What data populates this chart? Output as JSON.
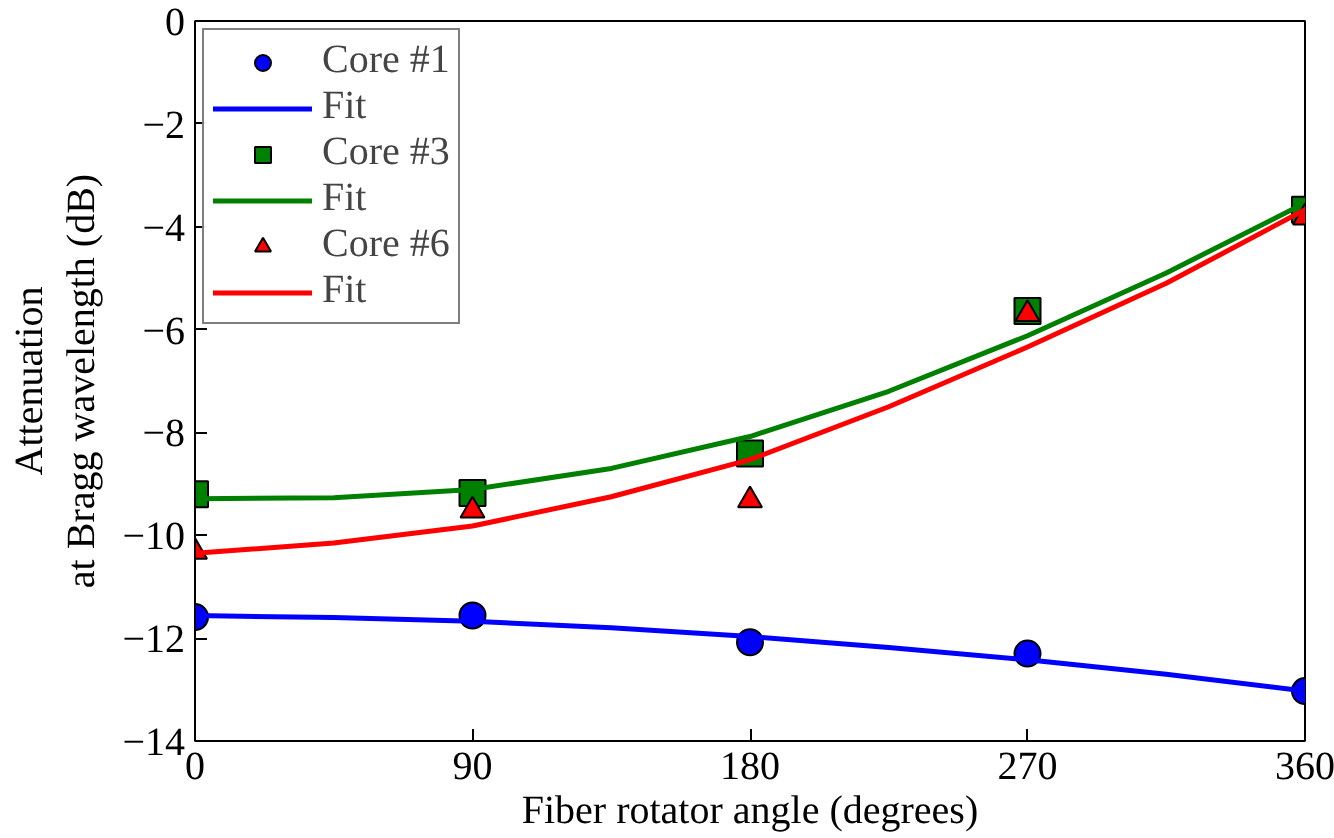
{
  "chart_data": {
    "type": "scatter",
    "xlabel": "Fiber rotator angle (degrees)",
    "ylabel": "Attenuation\nat Bragg wavelength (dB)",
    "x": [
      0,
      90,
      180,
      270,
      360
    ],
    "xlim": [
      0,
      360
    ],
    "xticks": [
      0,
      90,
      180,
      270,
      360
    ],
    "ylim": [
      -14,
      0
    ],
    "yticks": [
      -14,
      -12,
      -10,
      -8,
      -6,
      -4,
      -2,
      0
    ],
    "grid": false,
    "legend": "top left",
    "series": [
      {
        "name": "Core #1",
        "color": "#0000ff",
        "marker": "circle",
        "values": [
          -11.59,
          -11.56,
          -12.08,
          -12.3,
          -13.03
        ]
      },
      {
        "name": "Fit",
        "type": "line",
        "color": "#0000ff",
        "marker": "none",
        "x": [
          0,
          45,
          90,
          135,
          180,
          225,
          270,
          315,
          360
        ],
        "values": [
          -11.56,
          -11.6,
          -11.67,
          -11.8,
          -11.97,
          -12.18,
          -12.42,
          -12.7,
          -13.03
        ]
      },
      {
        "name": "Core #3",
        "color": "#008000",
        "marker": "square",
        "values": [
          -9.2,
          -9.18,
          -8.41,
          -5.64,
          -3.67
        ]
      },
      {
        "name": "Fit",
        "type": "line",
        "color": "#008000",
        "marker": "none",
        "x": [
          0,
          45,
          90,
          135,
          180,
          225,
          270,
          315,
          360
        ],
        "values": [
          -9.29,
          -9.27,
          -9.11,
          -8.7,
          -8.08,
          -7.2,
          -6.12,
          -4.9,
          -3.54
        ]
      },
      {
        "name": "Core #6",
        "color": "#ff0000",
        "marker": "triangle",
        "values": [
          -10.32,
          -9.52,
          -9.32,
          -5.7,
          -3.82
        ]
      },
      {
        "name": "Fit",
        "type": "line",
        "color": "#ff0000",
        "marker": "none",
        "x": [
          0,
          45,
          90,
          135,
          180,
          225,
          270,
          315,
          360
        ],
        "values": [
          -10.35,
          -10.15,
          -9.82,
          -9.25,
          -8.53,
          -7.5,
          -6.34,
          -5.1,
          -3.67
        ]
      }
    ]
  }
}
